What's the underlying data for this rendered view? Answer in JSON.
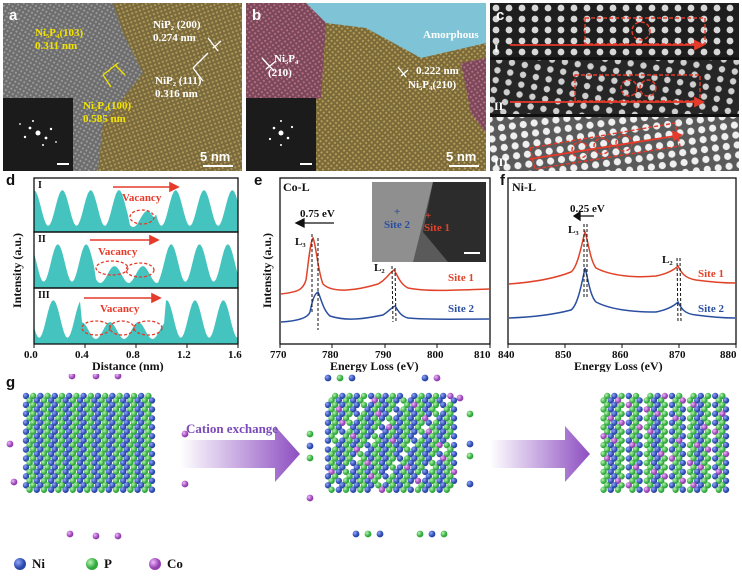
{
  "panels": {
    "a": {
      "label": "a",
      "annotations": [
        "Ni₅P₄(103)",
        "0.311 nm",
        "NiP₂ (200)",
        "0.274 nm",
        "NiP₂ (111)",
        "0.316 nm",
        "Ni₅P₄(100)",
        "0.585 nm"
      ],
      "scale": "5 nm"
    },
    "b": {
      "label": "b",
      "annotations": [
        "Ni₅P₄",
        "(210)",
        "Amorphous",
        "0.222 nm",
        "Ni₅P₄(210)"
      ],
      "scale": "5 nm"
    },
    "c": {
      "label": "c",
      "rows": [
        "I",
        "II",
        "III"
      ]
    },
    "d": {
      "label": "d",
      "rows": [
        "I",
        "II",
        "III"
      ],
      "vacancy": "Vacancy",
      "ylabel": "Intensity (a.u.)",
      "xlabel": "Distance (nm)",
      "xticks": [
        "0.0",
        "0.4",
        "0.8",
        "1.2",
        "1.6"
      ]
    },
    "e": {
      "label": "e",
      "title": "Co-L",
      "shift": "0.75 eV",
      "peaks": [
        "L₃",
        "L₂"
      ],
      "sites": [
        "Site 1",
        "Site 2"
      ],
      "inset_sites": [
        "Site 2",
        "Site 1"
      ],
      "ylabel": "Intensity (a.u.)",
      "xlabel": "Energy Loss (eV)",
      "xticks": [
        "770",
        "780",
        "790",
        "800",
        "810"
      ]
    },
    "f": {
      "label": "f",
      "title": "Ni-L",
      "shift": "0.25 eV",
      "peaks": [
        "L₃",
        "L₂"
      ],
      "sites": [
        "Site 1",
        "Site 2"
      ],
      "xlabel": "Energy Loss (eV)",
      "xticks": [
        "840",
        "850",
        "860",
        "870",
        "880"
      ]
    },
    "g": {
      "label": "g",
      "arrow_text": "Cation exchange",
      "legend": [
        "Ni",
        "P",
        "Co"
      ]
    }
  },
  "colors": {
    "ni": "#3a5bbf",
    "p": "#3dbd4c",
    "co": "#b35ac8",
    "teal": "#44c3bf",
    "site1": "#e0432a",
    "site2": "#2a4ea0",
    "arrow": "#8e4fc2",
    "yellow": "#f2e200"
  }
}
